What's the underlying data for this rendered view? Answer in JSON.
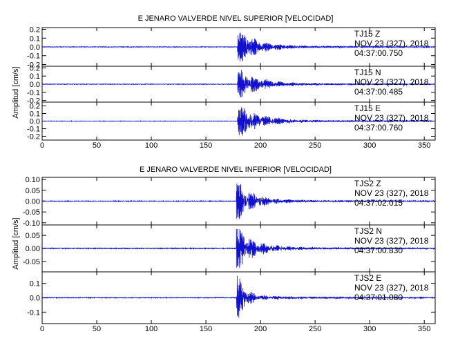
{
  "colors": {
    "trace": "#1010d0",
    "axis": "#000000",
    "background": "#ffffff"
  },
  "x_ticks": [
    "0",
    "50",
    "100",
    "150",
    "200",
    "250",
    "300",
    "350"
  ],
  "chart_data": [
    {
      "type": "line",
      "title": "E JENARO VALVERDE NIVEL SUPERIOR [VELOCIDAD]",
      "ylabel": "Amplitud [cm/s]",
      "xlim": [
        0,
        360
      ],
      "panels": [
        {
          "name": "TJ15 Z",
          "line1": "TJ15   Z",
          "line2": "NOV 23 (327), 2018",
          "line3": "04:37:00.750",
          "ylim": [
            -0.22,
            0.22
          ],
          "ytick_values": [
            0.2,
            0.1,
            0.0,
            -0.1,
            -0.2
          ],
          "yticks": [
            "0.2",
            "0.1",
            "0.0",
            "-0.1",
            "-0.2"
          ],
          "onset_s": 179,
          "peak": 0.2,
          "noise": 0.003,
          "decay_s": 16,
          "coda_s": 130
        },
        {
          "name": "TJ15 N",
          "line1": "TJ15   N",
          "line2": "NOV 23 (327), 2018",
          "line3": "04:37:00.485",
          "ylim": [
            -0.22,
            0.22
          ],
          "ytick_values": [
            0.2,
            0.1,
            0.0,
            -0.1,
            -0.2
          ],
          "yticks": [
            "0.2",
            "0.1",
            "0.0",
            "-0.1",
            "-0.2"
          ],
          "onset_s": 179,
          "peak": 0.19,
          "noise": 0.003,
          "decay_s": 18,
          "coda_s": 130
        },
        {
          "name": "TJ15 E",
          "line1": "TJ15   E",
          "line2": "NOV 23 (327), 2018",
          "line3": "04:37:00.760",
          "ylim": [
            -0.25,
            0.25
          ],
          "ytick_values": [
            0.2,
            0.1,
            0.0,
            -0.1,
            -0.2
          ],
          "yticks": [
            "0.2",
            "0.1",
            "0.0",
            "-0.1",
            "-0.2"
          ],
          "onset_s": 179,
          "peak": 0.22,
          "noise": 0.003,
          "decay_s": 18,
          "coda_s": 130
        }
      ]
    },
    {
      "type": "line",
      "title": "E JENARO VALVERDE NIVEL INFERIOR [VELOCIDAD]",
      "ylabel": "Amplitud [cm/s]",
      "xlim": [
        0,
        360
      ],
      "panels": [
        {
          "name": "TJS2 Z",
          "line1": "TJS2   Z",
          "line2": "NOV 23 (327), 2018",
          "line3": "04:37:02.015",
          "ylim": [
            -0.11,
            0.11
          ],
          "ytick_values": [
            0.1,
            0.05,
            0.0,
            -0.05,
            -0.1
          ],
          "yticks": [
            "0.10",
            "0.05",
            "0.00",
            "-0.05",
            "-0.10"
          ],
          "onset_s": 178,
          "peak": 0.09,
          "noise": 0.0015,
          "decay_s": 14,
          "coda_s": 110
        },
        {
          "name": "TJS2 N",
          "line1": "TJS2   N",
          "line2": "NOV 23 (327), 2018",
          "line3": "04:37:00.830",
          "ylim": [
            -0.09,
            0.09
          ],
          "ytick_values": [
            0.05,
            0.0,
            -0.05
          ],
          "yticks": [
            "0.05",
            "0.00",
            "-0.05"
          ],
          "onset_s": 178,
          "peak": 0.08,
          "noise": 0.0015,
          "decay_s": 15,
          "coda_s": 110
        },
        {
          "name": "TJS2 E",
          "line1": "TJS2   E",
          "line2": "NOV 23 (327), 2018",
          "line3": "04:37:01.080",
          "ylim": [
            -0.18,
            0.18
          ],
          "ytick_values": [
            0.1,
            0.0,
            -0.1
          ],
          "yticks": [
            "0.1",
            "0.0",
            "-0.1"
          ],
          "onset_s": 178,
          "peak": 0.17,
          "noise": 0.002,
          "decay_s": 8,
          "coda_s": 90
        }
      ]
    }
  ]
}
